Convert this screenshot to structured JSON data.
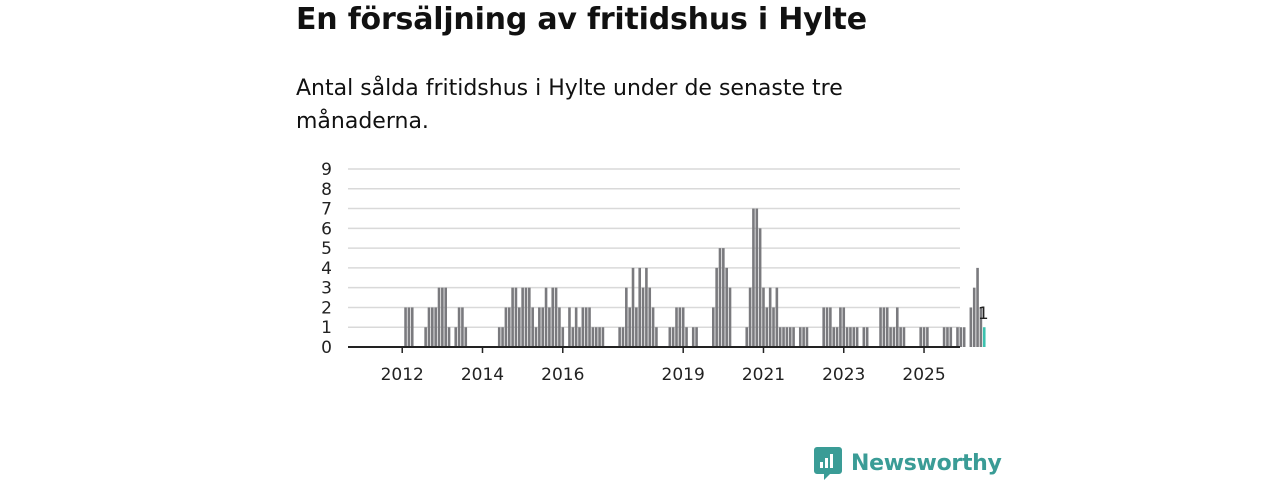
{
  "header": {
    "title": "En försäljning av fritidshus i Hylte",
    "subtitle": "Antal sålda fritidshus i Hylte under de senaste tre månaderna."
  },
  "brand": {
    "name": "Newsworthy",
    "icon": "newsworthy-logo-icon",
    "color": "#3a9c96"
  },
  "chart_data": {
    "type": "bar",
    "y_ticks": [
      "0",
      "1",
      "2",
      "3",
      "4",
      "5",
      "6",
      "7",
      "8",
      "9"
    ],
    "x_ticks": [
      {
        "label": "2012",
        "index": 7
      },
      {
        "label": "2014",
        "index": 31
      },
      {
        "label": "2016",
        "index": 55
      },
      {
        "label": "2019",
        "index": 91
      },
      {
        "label": "2021",
        "index": 115
      },
      {
        "label": "2023",
        "index": 139
      },
      {
        "label": "2025",
        "index": 163
      }
    ],
    "ylim": [
      0,
      9
    ],
    "grid": true,
    "bar_color": "#7a7a7e",
    "highlight_color": "#3cc1ae",
    "highlight_label": "1",
    "values": [
      0,
      0,
      0,
      0,
      0,
      0,
      0,
      0,
      2,
      2,
      2,
      0,
      0,
      0,
      1,
      2,
      2,
      2,
      3,
      3,
      3,
      1,
      0,
      1,
      2,
      2,
      1,
      0,
      0,
      0,
      0,
      0,
      0,
      0,
      0,
      0,
      1,
      1,
      2,
      2,
      3,
      3,
      2,
      3,
      3,
      3,
      2,
      1,
      2,
      2,
      3,
      2,
      3,
      3,
      2,
      1,
      0,
      2,
      1,
      2,
      1,
      2,
      2,
      2,
      1,
      1,
      1,
      1,
      0,
      0,
      0,
      0,
      1,
      1,
      3,
      2,
      4,
      2,
      4,
      3,
      4,
      3,
      2,
      1,
      0,
      0,
      0,
      1,
      1,
      2,
      2,
      2,
      1,
      0,
      1,
      1,
      0,
      0,
      0,
      0,
      2,
      4,
      5,
      5,
      4,
      3,
      0,
      0,
      0,
      0,
      1,
      3,
      7,
      7,
      6,
      3,
      2,
      3,
      2,
      3,
      1,
      1,
      1,
      1,
      1,
      0,
      1,
      1,
      1,
      0,
      0,
      0,
      0,
      2,
      2,
      2,
      1,
      1,
      2,
      2,
      1,
      1,
      1,
      1,
      0,
      1,
      1,
      0,
      0,
      0,
      2,
      2,
      2,
      1,
      1,
      2,
      1,
      1,
      0,
      0,
      0,
      0,
      1,
      1,
      1,
      0,
      0,
      0,
      0,
      1,
      1,
      1,
      0,
      1,
      1,
      1,
      0,
      2,
      3,
      4,
      2,
      1
    ]
  }
}
